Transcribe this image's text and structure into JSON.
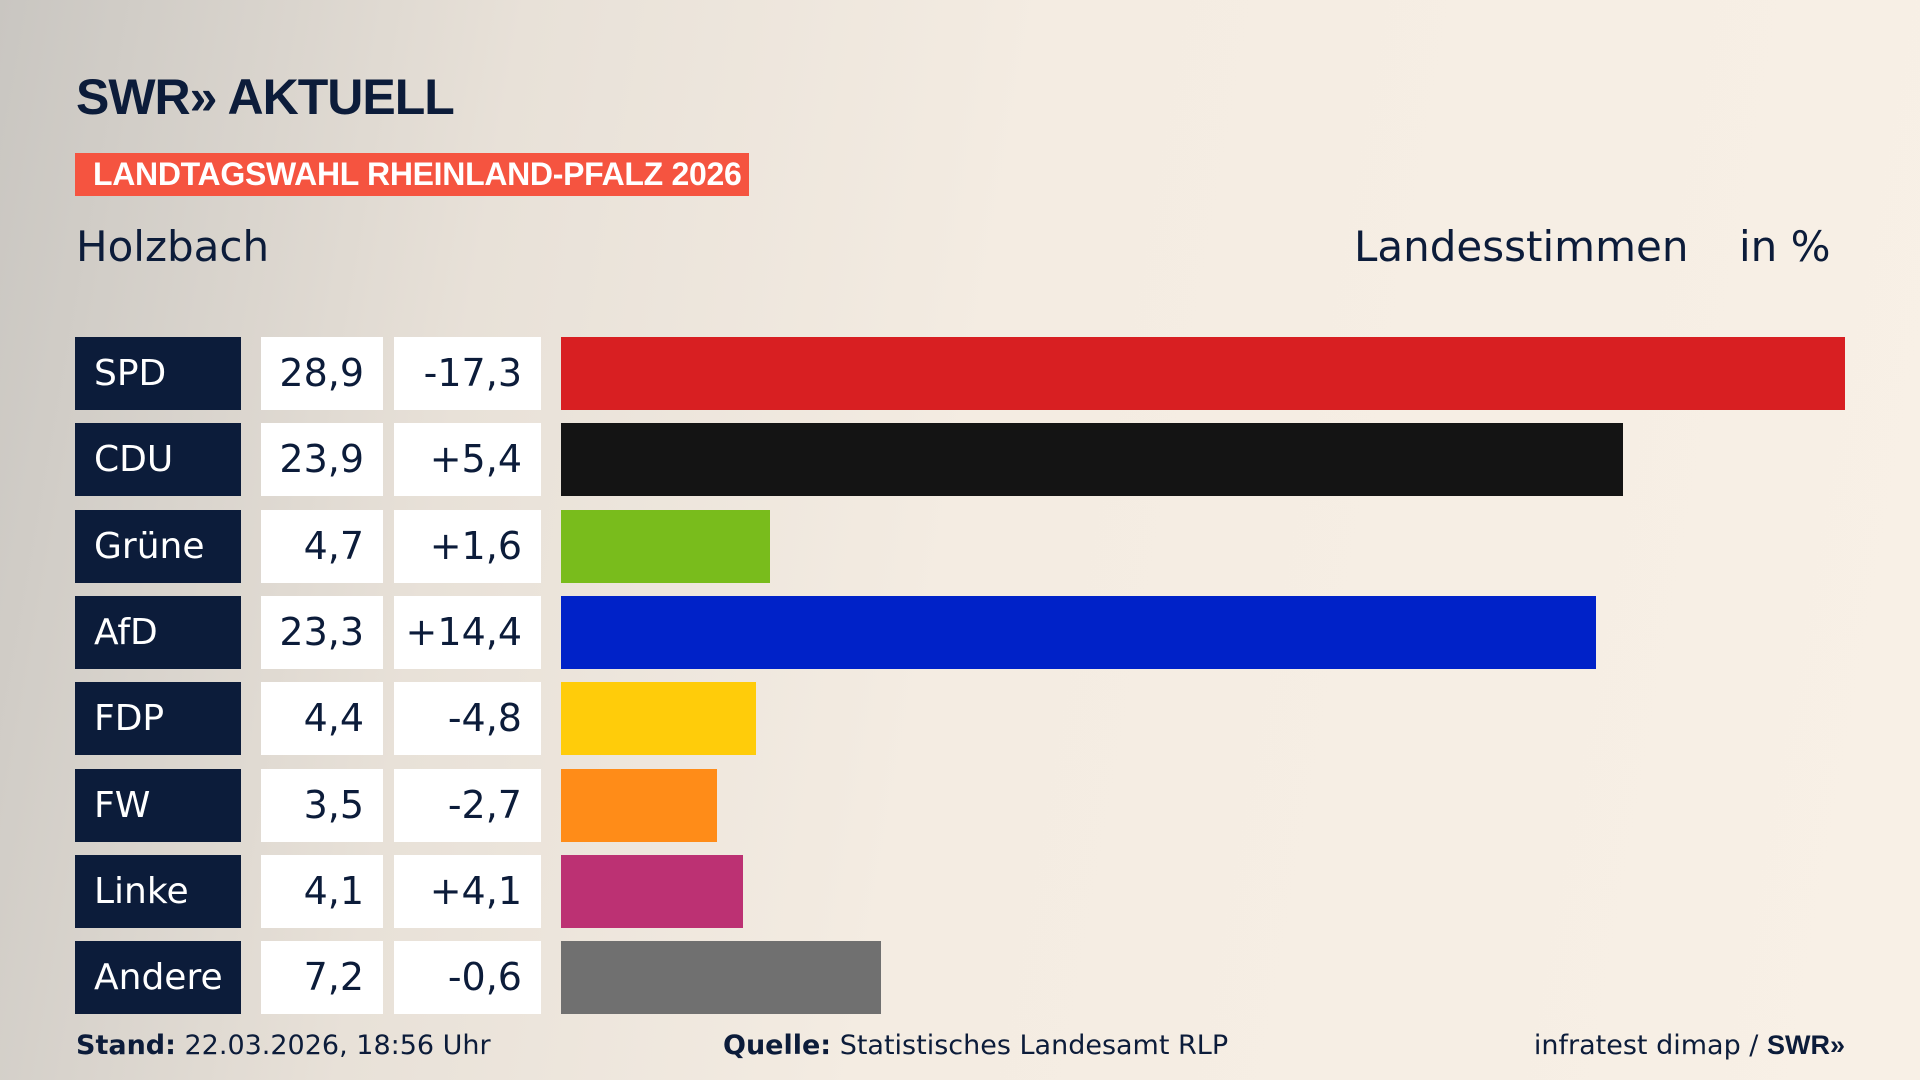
{
  "header": {
    "logo": "SWR» AKTUELL",
    "banner": "LANDTAGSWAHL RHEINLAND-PFALZ 2026",
    "place": "Holzbach",
    "measure": "Landesstimmen",
    "unit": "in %"
  },
  "chart_data": {
    "type": "bar",
    "orientation": "horizontal",
    "xlim": [
      0,
      28.9
    ],
    "categories": [
      "SPD",
      "CDU",
      "Grüne",
      "AfD",
      "FDP",
      "FW",
      "Linke",
      "Andere"
    ],
    "values": [
      28.9,
      23.9,
      4.7,
      23.3,
      4.4,
      3.5,
      4.1,
      7.2
    ],
    "value_labels": [
      "28,9",
      "23,9",
      "4,7",
      "23,3",
      "4,4",
      "3,5",
      "4,1",
      "7,2"
    ],
    "diff_labels": [
      "-17,3",
      "+5,4",
      "+1,6",
      "+14,4",
      "-4,8",
      "-2,7",
      "+4,1",
      "-0,6"
    ],
    "colors": [
      "#d81f22",
      "#141414",
      "#79bc1c",
      "#0022c8",
      "#ffcc0a",
      "#ff8c18",
      "#bc3173",
      "#707070"
    ]
  },
  "footer": {
    "stand_label": "Stand:",
    "stand_value": " 22.03.2026, 18:56 Uhr",
    "source_label": "Quelle:",
    "source_value": " Statistisches Landesamt RLP",
    "credit": "infratest dimap / ",
    "credit_logo": "SWR»"
  }
}
